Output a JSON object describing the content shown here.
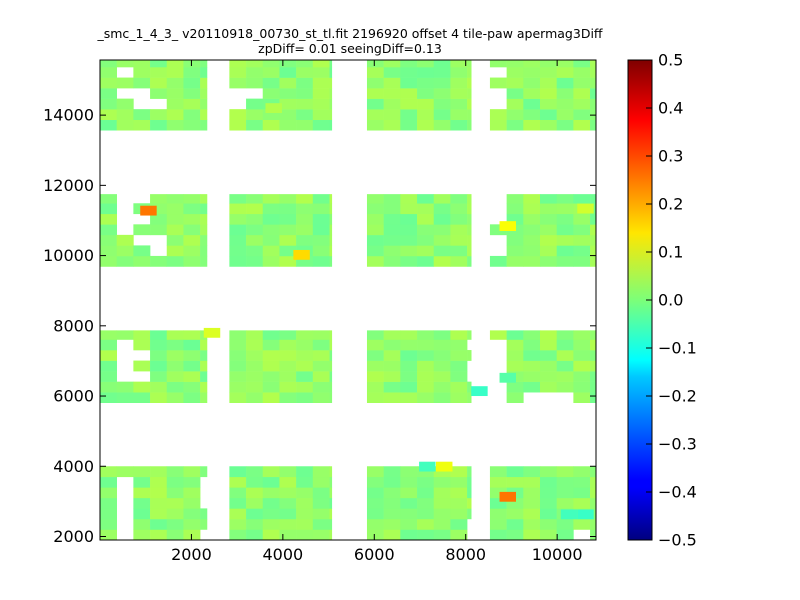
{
  "chart_data": {
    "type": "heatmap",
    "title": "_smc_1_4_3_ v20110918_00730_st_tl.fit 2196920 offset 4 tile-paw apermag3Diff",
    "subtitle": "zpDiff= 0.01 seeingDiff=0.13",
    "xlabel": "",
    "ylabel": "",
    "xlim": [
      0,
      10850
    ],
    "ylim": [
      1900,
      15570
    ],
    "xticks": [
      "2000",
      "4000",
      "6000",
      "8000",
      "10000"
    ],
    "yticks": [
      "2000",
      "4000",
      "6000",
      "8000",
      "10000",
      "12000",
      "14000"
    ],
    "colorbar": {
      "range": [
        -0.5,
        0.5
      ],
      "colormap": "jet",
      "ticks": [
        "0.5",
        "0.4",
        "0.3",
        "0.2",
        "0.1",
        "0.0",
        "−0.1",
        "−0.2",
        "−0.3",
        "−0.4",
        "−0.5"
      ]
    },
    "detector_columns": [
      {
        "x": [
          0,
          2340
        ]
      },
      {
        "x": [
          2830,
          5070
        ]
      },
      {
        "x": [
          5840,
          8120
        ]
      },
      {
        "x": [
          8530,
          10850
        ]
      }
    ],
    "detector_rows": [
      {
        "y": [
          13570,
          15570
        ]
      },
      {
        "y": [
          9690,
          11750
        ]
      },
      {
        "y": [
          5810,
          7870
        ]
      },
      {
        "y": [
          1900,
          4000
        ]
      }
    ],
    "hot_cells": [
      {
        "x": 880,
        "y": 11140,
        "value": 0.26
      },
      {
        "x": 4230,
        "y": 9880,
        "value": 0.16
      },
      {
        "x": 2270,
        "y": 7660,
        "value": 0.09
      },
      {
        "x": 6980,
        "y": 3850,
        "value": -0.06
      },
      {
        "x": 7350,
        "y": 3850,
        "value": 0.11
      },
      {
        "x": 8740,
        "y": 2990,
        "value": 0.26
      },
      {
        "x": 8740,
        "y": 10700,
        "value": 0.12
      },
      {
        "x": 10440,
        "y": 11200,
        "value": 0.08
      },
      {
        "x": 8120,
        "y": 6000,
        "value": -0.07
      },
      {
        "x": 8740,
        "y": 6380,
        "value": -0.04
      },
      {
        "x": 10440,
        "y": 2490,
        "value": -0.07
      },
      {
        "x": 10080,
        "y": 2490,
        "value": -0.06
      },
      {
        "x": 3620,
        "y": 14060,
        "value": 0.05
      }
    ],
    "missing_cells": [
      {
        "x": 320,
        "y": 15290
      },
      {
        "x": 320,
        "y": 14680
      },
      {
        "x": 680,
        "y": 14680
      },
      {
        "x": 680,
        "y": 14380
      },
      {
        "x": 1050,
        "y": 14380
      },
      {
        "x": 2830,
        "y": 14680
      },
      {
        "x": 2830,
        "y": 14380
      },
      {
        "x": 3200,
        "y": 14680
      },
      {
        "x": 8530,
        "y": 15290
      },
      {
        "x": 8530,
        "y": 14680
      },
      {
        "x": 8530,
        "y": 14380
      },
      {
        "x": 320,
        "y": 11500
      },
      {
        "x": 320,
        "y": 11200
      },
      {
        "x": 320,
        "y": 10900
      },
      {
        "x": 680,
        "y": 11500
      },
      {
        "x": 680,
        "y": 10900
      },
      {
        "x": 320,
        "y": 10600
      },
      {
        "x": 680,
        "y": 10300
      },
      {
        "x": 1050,
        "y": 10300
      },
      {
        "x": 1050,
        "y": 10000
      },
      {
        "x": 8530,
        "y": 11500
      },
      {
        "x": 8530,
        "y": 11200
      },
      {
        "x": 8530,
        "y": 10900
      },
      {
        "x": 8530,
        "y": 10300
      },
      {
        "x": 8530,
        "y": 10000
      },
      {
        "x": 320,
        "y": 7360
      },
      {
        "x": 320,
        "y": 7060
      },
      {
        "x": 320,
        "y": 6760
      },
      {
        "x": 680,
        "y": 7060
      },
      {
        "x": 320,
        "y": 6460
      },
      {
        "x": 680,
        "y": 6460
      },
      {
        "x": 8120,
        "y": 7360
      },
      {
        "x": 8120,
        "y": 6760
      },
      {
        "x": 8120,
        "y": 6460
      },
      {
        "x": 8530,
        "y": 7360
      },
      {
        "x": 8530,
        "y": 7060
      },
      {
        "x": 8530,
        "y": 6760
      },
      {
        "x": 8530,
        "y": 6460
      },
      {
        "x": 8530,
        "y": 6160
      },
      {
        "x": 8530,
        "y": 5860
      },
      {
        "x": 9280,
        "y": 5860
      },
      {
        "x": 10080,
        "y": 5860
      },
      {
        "x": 9640,
        "y": 5860
      },
      {
        "x": 320,
        "y": 3550
      },
      {
        "x": 320,
        "y": 3250
      },
      {
        "x": 320,
        "y": 2950
      },
      {
        "x": 320,
        "y": 2650
      },
      {
        "x": 320,
        "y": 2350
      },
      {
        "x": 320,
        "y": 2050
      },
      {
        "x": 2270,
        "y": 3550
      },
      {
        "x": 2270,
        "y": 3250
      },
      {
        "x": 2270,
        "y": 2950
      },
      {
        "x": 2270,
        "y": 2050
      },
      {
        "x": 8120,
        "y": 2350
      },
      {
        "x": 8120,
        "y": 2050
      },
      {
        "x": 10440,
        "y": 2050
      }
    ]
  }
}
